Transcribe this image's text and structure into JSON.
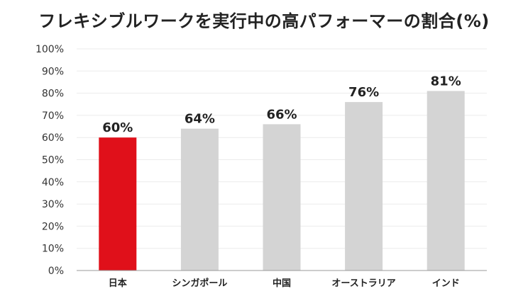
{
  "chart_data": {
    "type": "bar",
    "title": "フレキシブルワークを実行中の高パフォーマーの割合(%)",
    "categories": [
      "日本",
      "シンガポール",
      "中国",
      "オーストラリア",
      "インド"
    ],
    "values": [
      60,
      64,
      66,
      76,
      81
    ],
    "data_labels": [
      "60%",
      "64%",
      "66%",
      "76%",
      "81%"
    ],
    "ylim": [
      0,
      100
    ],
    "yticks": [
      0,
      10,
      20,
      30,
      40,
      50,
      60,
      70,
      80,
      90,
      100
    ],
    "ytick_labels": [
      "0%",
      "10%",
      "20%",
      "30%",
      "40%",
      "50%",
      "60%",
      "70%",
      "80%",
      "90%",
      "100%"
    ],
    "grid": true,
    "colors": [
      "#e0101a",
      "#d4d4d4",
      "#d4d4d4",
      "#d4d4d4",
      "#d4d4d4"
    ],
    "grid_color": "#ebebeb",
    "axis_color": "#999999"
  }
}
